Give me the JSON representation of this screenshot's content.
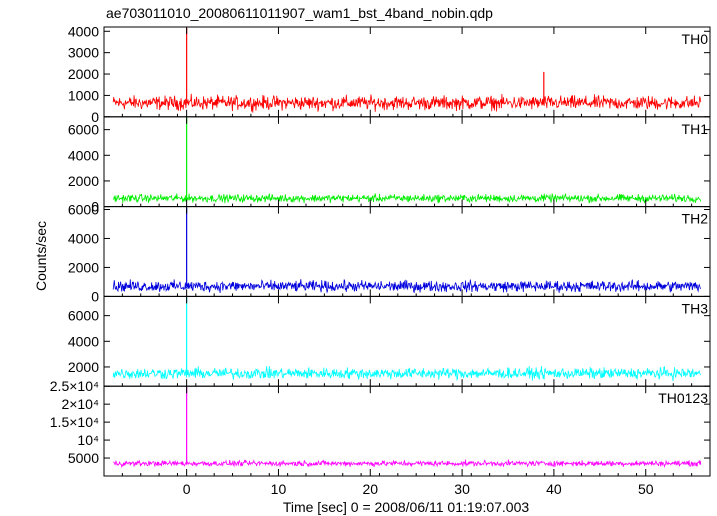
{
  "title": "ae703011010_20080611011907_wam1_bst_4band_nobin.qdp",
  "chart_data": {
    "type": "line",
    "xlabel": "Time [sec] 0 = 2008/06/11 01:19:07.003",
    "ylabel": "Counts/sec",
    "xlim": [
      -9,
      57
    ],
    "x_ticks": [
      0,
      10,
      20,
      30,
      40,
      50
    ],
    "x_tick_labels": [
      "0",
      "10",
      "20",
      "30",
      "40",
      "50"
    ],
    "panels": [
      {
        "name": "TH0",
        "color": "#ff0000",
        "ylim": [
          0,
          4200
        ],
        "y_ticks": [
          0,
          1000,
          2000,
          3000,
          4000
        ],
        "y_tick_labels": [
          "0",
          "1000",
          "2000",
          "3000",
          "4000"
        ],
        "baseline": 650,
        "noise": 300,
        "series": [
          {
            "x": -8,
            "y": 650
          },
          {
            "x": 0,
            "y": 4200
          },
          {
            "x": 38.9,
            "y": 2100
          },
          {
            "x": 56,
            "y": 650
          }
        ]
      },
      {
        "name": "TH1",
        "color": "#00ee00",
        "ylim": [
          0,
          7000
        ],
        "y_ticks": [
          0,
          2000,
          4000,
          6000
        ],
        "y_tick_labels": [
          "0",
          "2000",
          "4000",
          "6000"
        ],
        "baseline": 650,
        "noise": 280,
        "series": [
          {
            "x": -8,
            "y": 650
          },
          {
            "x": 0,
            "y": 7000
          },
          {
            "x": 56,
            "y": 650
          }
        ]
      },
      {
        "name": "TH2",
        "color": "#0000dd",
        "ylim": [
          0,
          6200
        ],
        "y_ticks": [
          0,
          2000,
          4000,
          6000
        ],
        "y_tick_labels": [
          "0",
          "2000",
          "4000",
          "6000"
        ],
        "baseline": 700,
        "noise": 350,
        "series": [
          {
            "x": -8,
            "y": 700
          },
          {
            "x": 0,
            "y": 6200
          },
          {
            "x": 56,
            "y": 700
          }
        ]
      },
      {
        "name": "TH3",
        "color": "#00ffff",
        "ylim": [
          500,
          7500
        ],
        "y_ticks": [
          2000,
          4000,
          6000
        ],
        "y_tick_labels": [
          "2000",
          "4000",
          "6000"
        ],
        "baseline": 1500,
        "noise": 400,
        "series": [
          {
            "x": -8,
            "y": 1500
          },
          {
            "x": 0,
            "y": 7500
          },
          {
            "x": 56,
            "y": 1500
          }
        ]
      },
      {
        "name": "TH0123",
        "color": "#ff00ff",
        "ylim": [
          0,
          25000
        ],
        "y_ticks": [
          5000,
          10000,
          15000,
          20000,
          25000
        ],
        "y_tick_labels": [
          "5000",
          "10⁴",
          "1.5×10⁴",
          "2×10⁴",
          "2.5×10⁴"
        ],
        "baseline": 3500,
        "noise": 700,
        "series": [
          {
            "x": -8,
            "y": 3500
          },
          {
            "x": 0,
            "y": 25000
          },
          {
            "x": 56,
            "y": 3500
          }
        ]
      }
    ]
  }
}
